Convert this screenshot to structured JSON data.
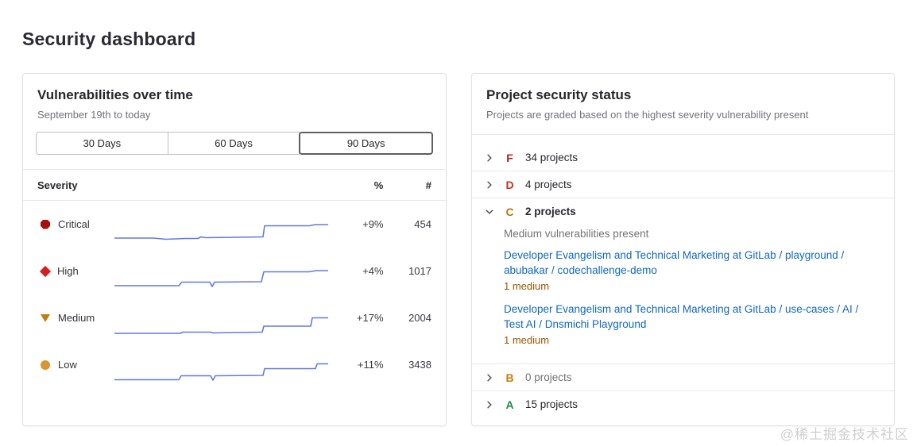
{
  "page": {
    "title": "Security dashboard",
    "watermark": "@稀土掘金技术社区"
  },
  "vulnerabilities_panel": {
    "title": "Vulnerabilities over time",
    "subtitle": "September 19th to today",
    "range_buttons": [
      {
        "label": "30 Days",
        "selected": false
      },
      {
        "label": "60 Days",
        "selected": false
      },
      {
        "label": "90 Days",
        "selected": true
      }
    ],
    "table_headers": {
      "severity": "Severity",
      "percent": "%",
      "count": "#"
    },
    "spark_color": "#617ae2",
    "rows": [
      {
        "severity": "Critical",
        "icon": "critical-severity-icon",
        "icon_shape": "critical",
        "color": "#a4120e",
        "change": "+9%",
        "count": "454",
        "spark": [
          [
            3,
            26
          ],
          [
            52,
            26
          ],
          [
            68,
            27.5
          ],
          [
            92,
            26.5
          ],
          [
            108,
            26.5
          ],
          [
            112,
            24.5
          ],
          [
            118,
            25.5
          ],
          [
            155,
            25
          ],
          [
            190,
            24.5
          ],
          [
            192,
            10.5
          ],
          [
            248,
            10.5
          ],
          [
            256,
            9
          ],
          [
            272,
            9
          ]
        ]
      },
      {
        "severity": "High",
        "icon": "high-severity-icon",
        "icon_shape": "high",
        "color": "#d1201f",
        "change": "+4%",
        "count": "1017",
        "spark": [
          [
            3,
            27
          ],
          [
            84,
            27
          ],
          [
            88,
            22.5
          ],
          [
            118,
            22.5
          ],
          [
            123,
            22.5
          ],
          [
            126,
            28
          ],
          [
            129,
            22.5
          ],
          [
            188,
            22
          ],
          [
            191,
            9.5
          ],
          [
            248,
            9.5
          ],
          [
            257,
            8
          ],
          [
            272,
            8
          ]
        ]
      },
      {
        "severity": "Medium",
        "icon": "medium-severity-icon",
        "icon_shape": "medium",
        "color": "#c17d10",
        "change": "+17%",
        "count": "2004",
        "spark": [
          [
            3,
            28
          ],
          [
            86,
            28
          ],
          [
            89,
            26.5
          ],
          [
            124,
            26.5
          ],
          [
            127,
            27.5
          ],
          [
            158,
            27
          ],
          [
            189,
            26.5
          ],
          [
            191,
            19
          ],
          [
            250,
            19
          ],
          [
            252,
            8.5
          ],
          [
            272,
            8.5
          ]
        ]
      },
      {
        "severity": "Low",
        "icon": "low-severity-icon",
        "icon_shape": "low",
        "color": "#d99530",
        "change": "+11%",
        "count": "3438",
        "spark": [
          [
            3,
            27.5
          ],
          [
            84,
            27.5
          ],
          [
            87,
            22.5
          ],
          [
            120,
            22.5
          ],
          [
            124,
            22.5
          ],
          [
            127,
            28
          ],
          [
            130,
            22.5
          ],
          [
            190,
            22
          ],
          [
            192,
            13.5
          ],
          [
            256,
            13.5
          ],
          [
            258,
            7.5
          ],
          [
            272,
            7.5
          ]
        ]
      }
    ]
  },
  "project_panel": {
    "title": "Project security status",
    "subtitle": "Projects are graded based on the highest severity vulnerability present",
    "grades": [
      {
        "letter": "F",
        "color": "#b2221b",
        "label": "34 projects",
        "expanded": false,
        "muted": false
      },
      {
        "letter": "D",
        "color": "#c0341d",
        "label": "4 projects",
        "expanded": false,
        "muted": false
      },
      {
        "letter": "C",
        "color": "#b8740f",
        "label": "2 projects",
        "expanded": true,
        "muted": false,
        "description": "Medium vulnerabilities present",
        "projects": [
          {
            "name": "Developer Evangelism and Technical Marketing at GitLab / playground / abubakar / codechallenge-demo",
            "badge": "1 medium"
          },
          {
            "name": "Developer Evangelism and Technical Marketing at GitLab / use-cases / AI / Test AI / Dnsmichi Playground",
            "badge": "1 medium"
          }
        ]
      },
      {
        "letter": "B",
        "color": "#cd7a00",
        "label": "0 projects",
        "expanded": false,
        "muted": true
      },
      {
        "letter": "A",
        "color": "#1f8a4e",
        "label": "15 projects",
        "expanded": false,
        "muted": false
      }
    ]
  }
}
